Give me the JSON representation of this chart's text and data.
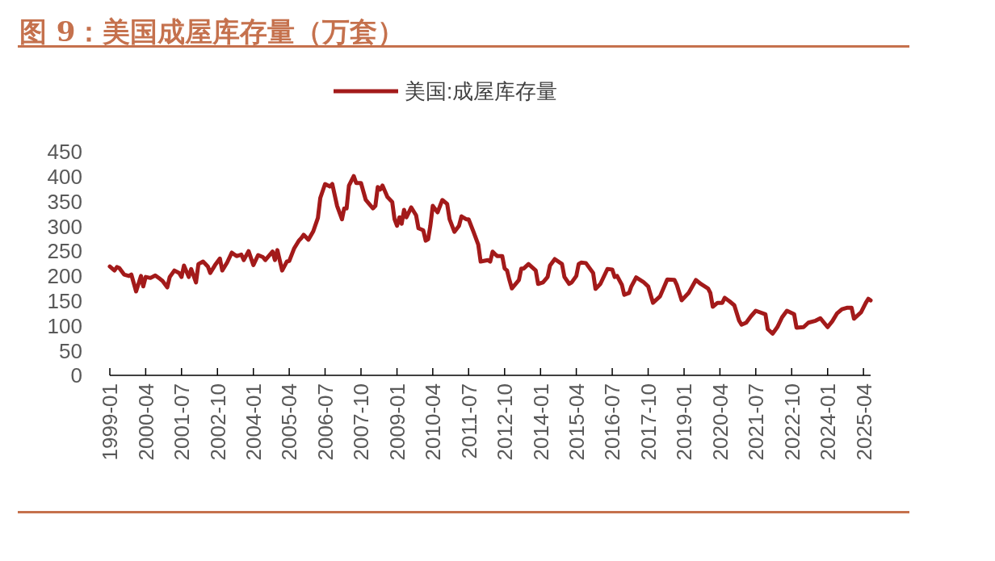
{
  "chart_data": {
    "type": "line",
    "title": "图 9：美国成屋库存量（万套）",
    "legend": "top",
    "xlim": [
      "1999-01",
      "2025-07"
    ],
    "xticks": [
      "1999-01",
      "2000-04",
      "2001-07",
      "2002-10",
      "2004-01",
      "2005-04",
      "2006-07",
      "2007-10",
      "2009-01",
      "2010-04",
      "2011-07",
      "2012-10",
      "2014-01",
      "2015-04",
      "2016-07",
      "2017-10",
      "2019-01",
      "2020-04",
      "2021-07",
      "2022-10",
      "2024-01",
      "2025-04"
    ],
    "ylim": [
      0,
      450
    ],
    "yticks": [
      0,
      50,
      100,
      150,
      200,
      250,
      300,
      350,
      400,
      450
    ],
    "grid": false,
    "x": [
      "1999-01",
      "1999-03",
      "1999-04",
      "1999-05",
      "1999-07",
      "1999-09",
      "1999-10",
      "1999-12",
      "2000-02",
      "2000-03",
      "2000-04",
      "2000-06",
      "2000-08",
      "2000-10",
      "2000-11",
      "2001-01",
      "2001-02",
      "2001-04",
      "2001-06",
      "2001-07",
      "2001-08",
      "2001-10",
      "2001-11",
      "2002-01",
      "2002-02",
      "2002-04",
      "2002-06",
      "2002-07",
      "2002-09",
      "2002-11",
      "2002-12",
      "2003-02",
      "2003-04",
      "2003-06",
      "2003-08",
      "2003-09",
      "2003-11",
      "2004-01",
      "2004-03",
      "2004-05",
      "2004-06",
      "2004-09",
      "2004-10",
      "2004-11",
      "2005-01",
      "2005-03",
      "2005-04",
      "2005-06",
      "2005-08",
      "2005-09",
      "2005-10",
      "2005-12",
      "2006-02",
      "2006-04",
      "2006-05",
      "2006-07",
      "2006-09",
      "2006-10",
      "2006-12",
      "2007-02",
      "2007-03",
      "2007-04",
      "2007-05",
      "2007-07",
      "2007-08",
      "2007-10",
      "2007-12",
      "2008-03",
      "2008-04",
      "2008-05",
      "2008-06",
      "2008-07",
      "2008-09",
      "2008-11",
      "2008-12",
      "2009-01",
      "2009-02",
      "2009-03",
      "2009-04",
      "2009-05",
      "2009-07",
      "2009-09",
      "2009-10",
      "2009-12",
      "2010-01",
      "2010-02",
      "2010-03",
      "2010-04",
      "2010-06",
      "2010-08",
      "2010-10",
      "2010-11",
      "2011-01",
      "2011-03",
      "2011-04",
      "2011-06",
      "2011-07",
      "2011-09",
      "2011-11",
      "2011-12",
      "2012-03",
      "2012-04",
      "2012-05",
      "2012-06",
      "2012-07",
      "2012-09",
      "2012-10",
      "2012-11",
      "2012-12",
      "2013-01",
      "2013-04",
      "2013-05",
      "2013-06",
      "2013-08",
      "2013-11",
      "2013-12",
      "2014-02",
      "2014-04",
      "2014-05",
      "2014-07",
      "2014-10",
      "2014-11",
      "2015-01",
      "2015-02",
      "2015-04",
      "2015-05",
      "2015-06",
      "2015-08",
      "2015-11",
      "2015-12",
      "2016-02",
      "2016-05",
      "2016-07",
      "2016-08",
      "2016-09",
      "2016-11",
      "2016-12",
      "2017-02",
      "2017-03",
      "2017-05",
      "2017-08",
      "2017-10",
      "2017-12",
      "2018-03",
      "2018-06",
      "2018-09",
      "2018-10",
      "2018-12",
      "2019-03",
      "2019-06",
      "2019-08",
      "2019-11",
      "2019-12",
      "2020-01",
      "2020-03",
      "2020-05",
      "2020-06",
      "2020-08",
      "2020-10",
      "2020-12",
      "2021-01",
      "2021-03",
      "2021-05",
      "2021-07",
      "2021-11",
      "2021-12",
      "2022-02",
      "2022-04",
      "2022-06",
      "2022-08",
      "2022-11",
      "2022-12",
      "2023-03",
      "2023-05",
      "2023-08",
      "2023-10",
      "2024-01",
      "2024-03",
      "2024-05",
      "2024-07",
      "2024-09",
      "2024-11",
      "2024-12",
      "2025-03",
      "2025-05",
      "2025-06",
      "2025-07"
    ],
    "series": [
      {
        "name": "美国:成屋库存量",
        "color": "#a31a1a",
        "values": [
          219,
          211,
          218,
          216,
          203,
          200,
          203,
          169,
          200,
          179,
          198,
          196,
          201,
          194,
          190,
          177,
          198,
          211,
          206,
          198,
          221,
          198,
          214,
          187,
          224,
          229,
          219,
          206,
          222,
          235,
          211,
          227,
          247,
          240,
          243,
          232,
          250,
          222,
          242,
          238,
          232,
          249,
          232,
          252,
          211,
          229,
          230,
          255,
          271,
          276,
          283,
          273,
          290,
          317,
          357,
          385,
          380,
          385,
          341,
          314,
          336,
          336,
          382,
          401,
          387,
          387,
          353,
          336,
          341,
          379,
          374,
          382,
          359,
          349,
          314,
          301,
          318,
          305,
          333,
          318,
          338,
          322,
          296,
          292,
          271,
          274,
          301,
          341,
          328,
          353,
          345,
          314,
          289,
          301,
          320,
          314,
          314,
          289,
          263,
          229,
          232,
          229,
          249,
          244,
          240,
          240,
          215,
          211,
          192,
          175,
          192,
          215,
          215,
          224,
          211,
          184,
          187,
          198,
          221,
          234,
          224,
          198,
          184,
          187,
          200,
          224,
          227,
          226,
          206,
          174,
          184,
          214,
          213,
          198,
          200,
          182,
          162,
          166,
          179,
          197,
          188,
          179,
          146,
          159,
          193,
          192,
          182,
          151,
          166,
          192,
          184,
          175,
          166,
          138,
          146,
          146,
          156,
          149,
          141,
          110,
          102,
          106,
          119,
          130,
          123,
          93,
          84,
          97,
          117,
          130,
          123,
          96,
          97,
          106,
          110,
          115,
          97,
          109,
          125,
          133,
          136,
          136,
          114,
          127,
          146,
          154,
          151
        ]
      }
    ]
  }
}
